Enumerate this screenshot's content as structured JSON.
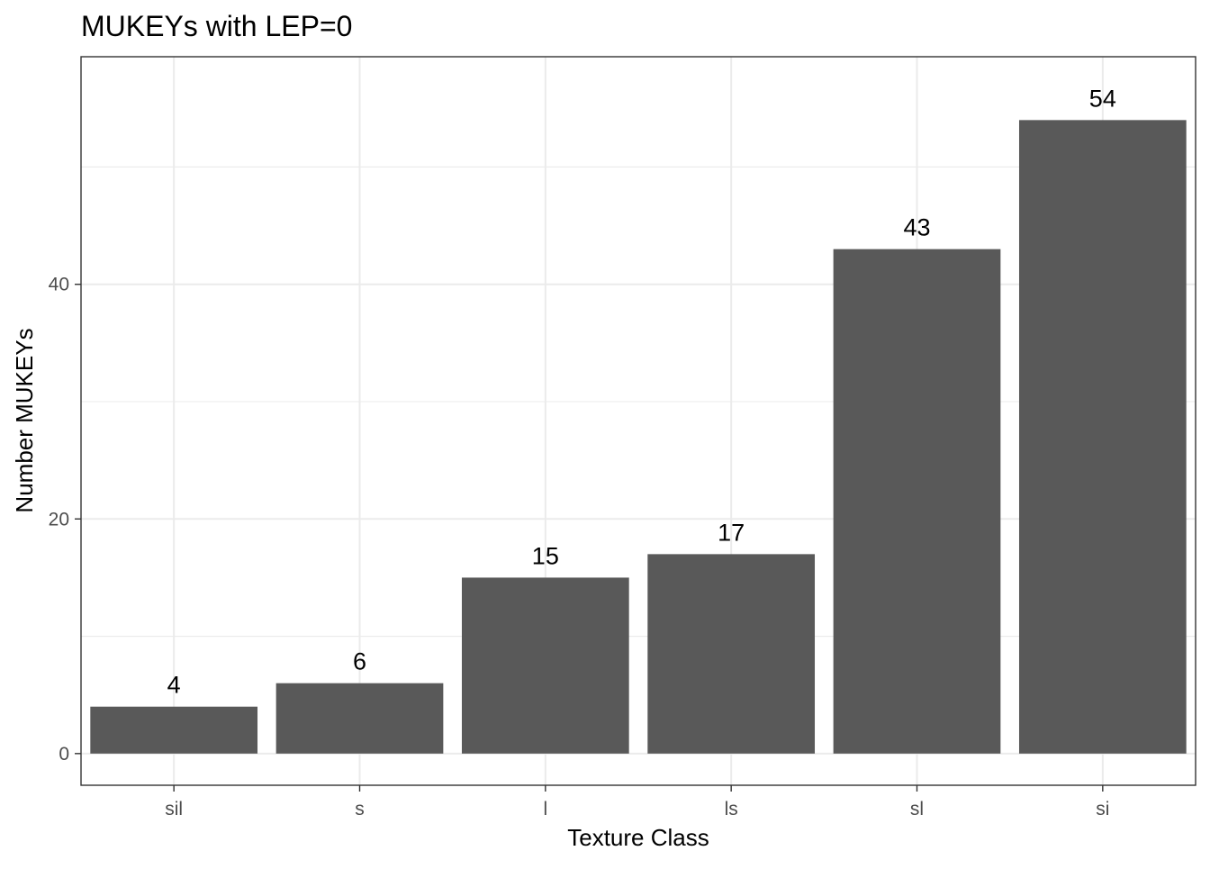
{
  "chart_data": {
    "type": "bar",
    "title": "MUKEYs with LEP=0",
    "xlabel": "Texture Class",
    "ylabel": "Number MUKEYs",
    "categories": [
      "sil",
      "s",
      "l",
      "ls",
      "sl",
      "si"
    ],
    "values": [
      4,
      6,
      15,
      17,
      43,
      54
    ],
    "data_labels": [
      "4",
      "6",
      "15",
      "17",
      "43",
      "54"
    ],
    "y_ticks": [
      0,
      20,
      40
    ],
    "y_tick_labels": [
      "0",
      "20",
      "40"
    ],
    "ylim": [
      -2.7,
      59.4
    ],
    "grid": true,
    "legend": "none",
    "theme": "bw",
    "colors": {
      "bar": "#595959",
      "grid": "#ebebeb",
      "panel_border": "#333333",
      "tick_label": "#4d4d4d",
      "text": "#000000"
    }
  }
}
